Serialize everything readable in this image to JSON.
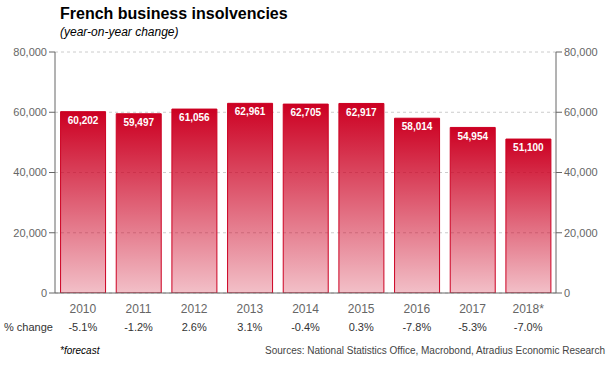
{
  "chart_data": {
    "type": "bar",
    "title": "French business insolvencies",
    "subtitle": "(year-on-year change)",
    "categories": [
      "2010",
      "2011",
      "2012",
      "2013",
      "2014",
      "2015",
      "2016",
      "2017",
      "2018*"
    ],
    "values": [
      60202,
      59497,
      61056,
      62961,
      62705,
      62917,
      58014,
      54954,
      51100
    ],
    "value_labels": [
      "60,202",
      "59,497",
      "61,056",
      "62,961",
      "62,705",
      "62,917",
      "58,014",
      "54,954",
      "51,100"
    ],
    "data_labels": true,
    "color": "#cc0022",
    "ylim": [
      0,
      80000
    ],
    "yticks": [
      0,
      {
        "value": 20000,
        "label": "20,000"
      },
      {
        "value": 40000,
        "label": "40,000"
      },
      {
        "value": 60000,
        "label": "60,000"
      },
      {
        "value": 80000,
        "label": "80,000"
      }
    ],
    "grid": true,
    "pct_change_label": "% change",
    "pct_changes": [
      "-5.1%",
      "-1.2%",
      "2.6%",
      "3.1%",
      "-0.4%",
      "0.3%",
      "-7.8%",
      "-5.3%",
      "-7.0%"
    ],
    "footnote_left": "*forecast",
    "footnote_right": "Sources: National Statistics Office, Macrobond, Atradius Economic Research"
  }
}
